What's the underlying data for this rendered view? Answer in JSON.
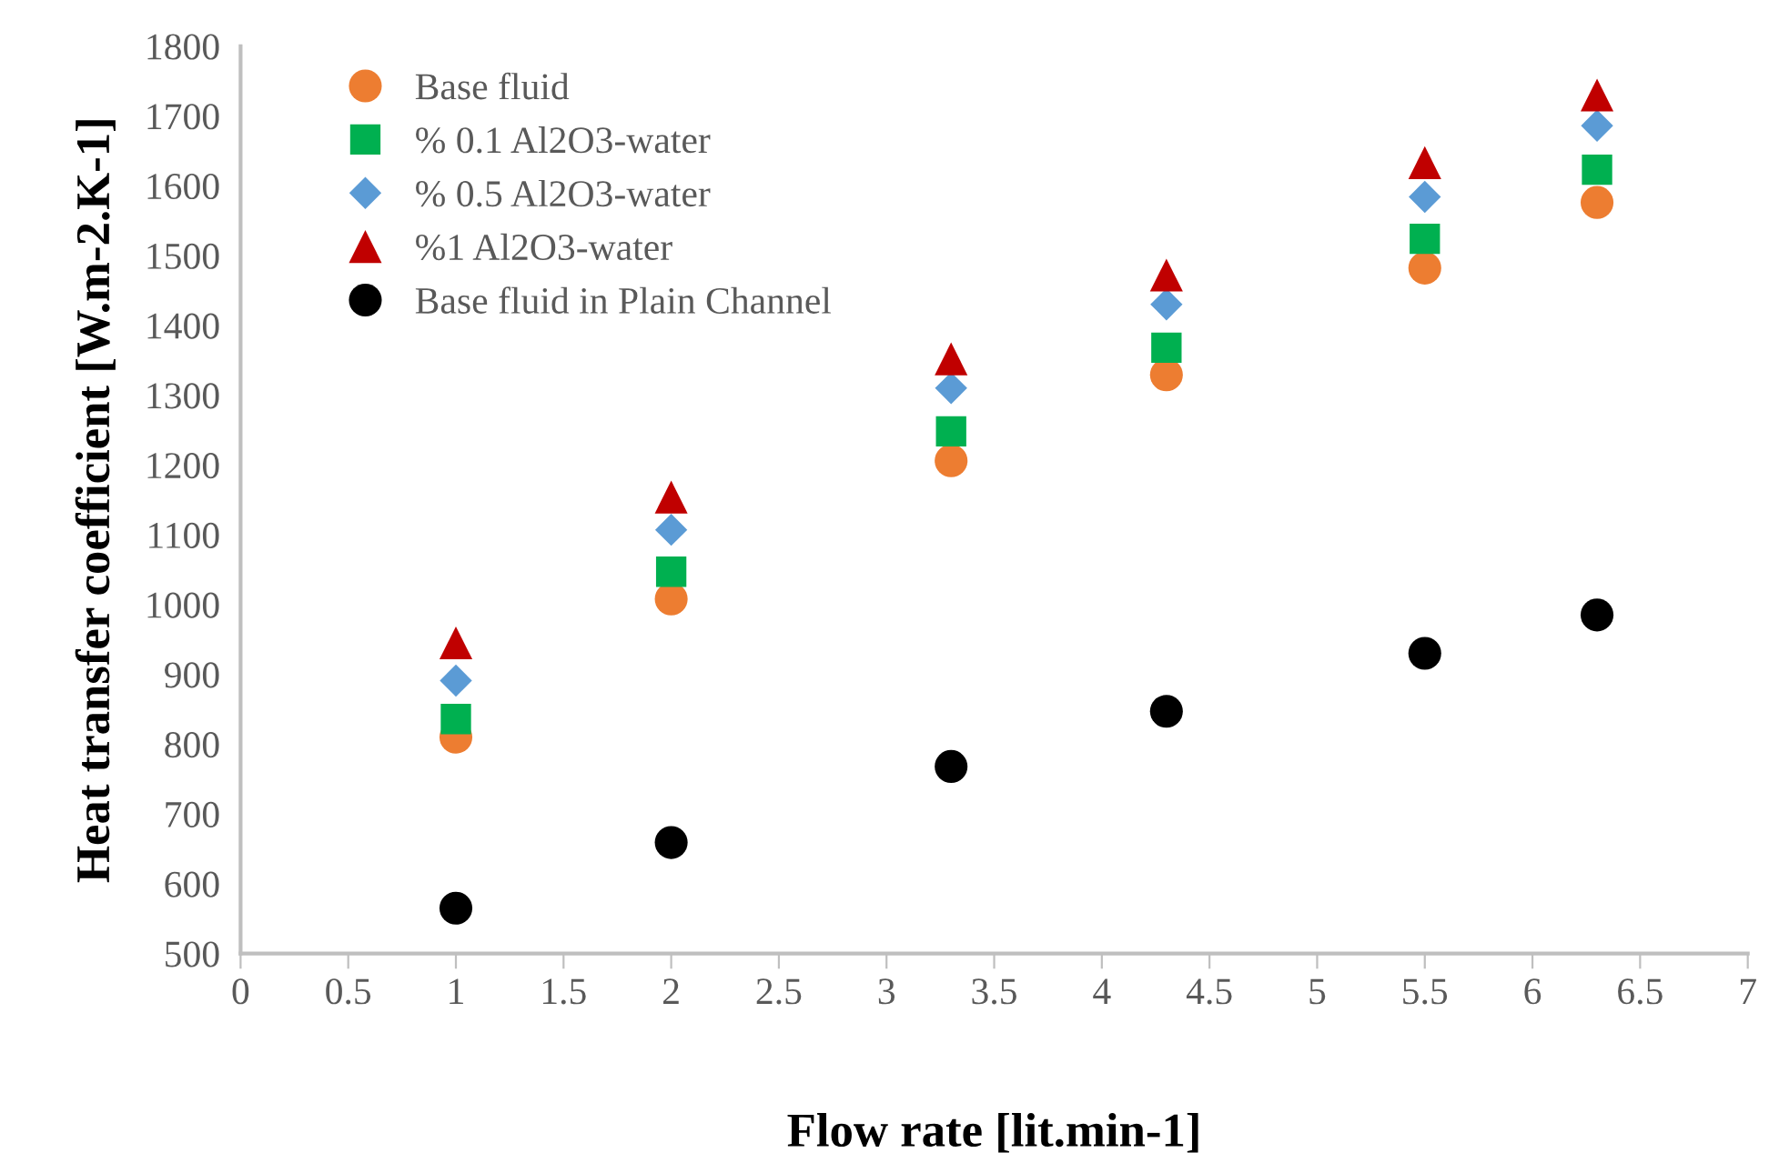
{
  "chart_data": {
    "type": "scatter",
    "xlabel": "Flow rate [lit.min-1]",
    "ylabel": "Heat transfer coefficient [W.m-2.K-1]",
    "x": [
      1,
      2,
      3.3,
      4.3,
      5.5,
      6.3
    ],
    "series": [
      {
        "name": "Base fluid",
        "color": "#ed7d31",
        "marker": "circle",
        "values": [
          810,
          1008,
          1206,
          1329,
          1482,
          1576
        ]
      },
      {
        "name": "% 0.1 Al2O3-water",
        "color": "#00b050",
        "marker": "square",
        "values": [
          836,
          1047,
          1248,
          1368,
          1524,
          1623
        ]
      },
      {
        "name": "% 0.5 Al2O3-water",
        "color": "#5b9bd5",
        "marker": "diamond",
        "values": [
          891,
          1107,
          1310,
          1430,
          1584,
          1686
        ]
      },
      {
        "name": "%1 Al2O3-water",
        "color": "#c00000",
        "marker": "triangle",
        "values": [
          945,
          1154,
          1352,
          1472,
          1633,
          1730
        ]
      },
      {
        "name": "Base fluid in Plain Channel",
        "color": "#000000",
        "marker": "circle",
        "values": [
          565,
          659,
          768,
          847,
          930,
          985
        ]
      }
    ],
    "xlim": [
      0,
      7
    ],
    "xticks": [
      0,
      0.5,
      1,
      1.5,
      2,
      2.5,
      3,
      3.5,
      4,
      4.5,
      5,
      5.5,
      6,
      6.5,
      7
    ],
    "ylim": [
      500,
      1800
    ],
    "yticks": [
      500,
      600,
      700,
      800,
      900,
      1000,
      1100,
      1200,
      1300,
      1400,
      1500,
      1600,
      1700,
      1800
    ],
    "grid": false,
    "legend": "top left"
  }
}
